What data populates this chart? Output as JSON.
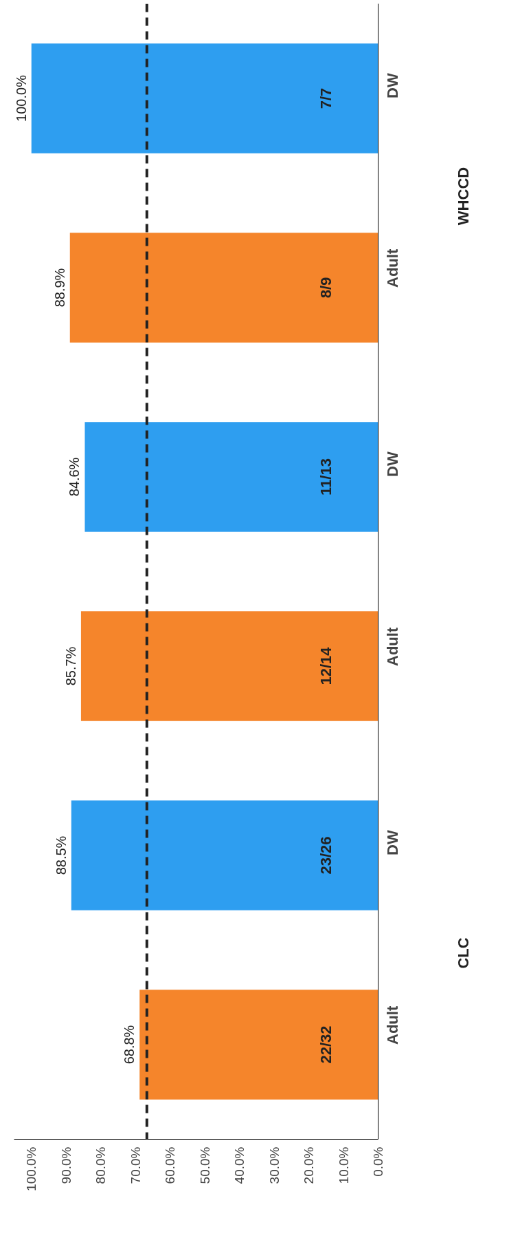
{
  "chart_data": {
    "type": "bar",
    "orientation": "horizontal",
    "categories": [
      "DW",
      "Adult",
      "DW",
      "Adult",
      "DW",
      "Adult"
    ],
    "values": [
      100.0,
      88.9,
      84.6,
      85.7,
      88.5,
      68.8
    ],
    "colors": [
      "#2e9ef0",
      "#f5852b",
      "#2e9ef0",
      "#f5852b",
      "#2e9ef0",
      "#f5852b"
    ],
    "value_labels": [
      "100.0%",
      "88.9%",
      "84.6%",
      "85.7%",
      "88.5%",
      "68.8%"
    ],
    "xlim": [
      105,
      0
    ],
    "xticks": [
      {
        "value": 0,
        "label": "0.0%"
      },
      {
        "value": 10,
        "label": "10.0%"
      },
      {
        "value": 20,
        "label": "20.0%"
      },
      {
        "value": 30,
        "label": "30.0%"
      },
      {
        "value": 40,
        "label": "40.0%"
      },
      {
        "value": 50,
        "label": "50.0%"
      },
      {
        "value": 60,
        "label": "60.0%"
      },
      {
        "value": 70,
        "label": "70.0%"
      },
      {
        "value": 80,
        "label": "80.0%"
      },
      {
        "value": 90,
        "label": "90.0%"
      },
      {
        "value": 100,
        "label": "100.0%"
      }
    ],
    "ref_lines": [
      {
        "axis": "x",
        "value": 66.7,
        "color": "#222222",
        "line_style": "dashed"
      }
    ],
    "annotations": [
      "7/7",
      "8/9",
      "11/13",
      "12/14",
      "23/26",
      "22/32",
      "WHCCD",
      "CLC"
    ],
    "grid": false
  }
}
